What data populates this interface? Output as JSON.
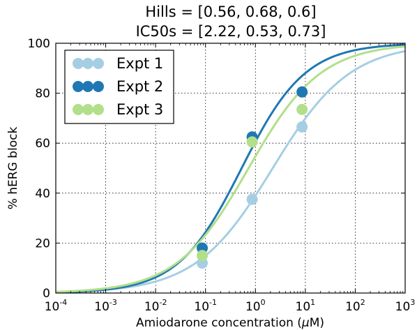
{
  "chart_data": {
    "type": "scatter",
    "title_lines": [
      "Hills = [0.56, 0.68, 0.6]",
      "IC50s = [2.22, 0.53, 0.73]"
    ],
    "xlabel_prefix": "Amiodarone concentration (",
    "xlabel_unit": "μ",
    "xlabel_suffix": "M)",
    "ylabel": "% hERG block",
    "x_scale": "log",
    "xlim": [
      0.0001,
      1000
    ],
    "ylim": [
      0,
      100
    ],
    "grid": true,
    "legend_position": "top-left",
    "x_ticks": [
      {
        "base": "10",
        "exp": "-4"
      },
      {
        "base": "10",
        "exp": "-3"
      },
      {
        "base": "10",
        "exp": "-2"
      },
      {
        "base": "10",
        "exp": "-1"
      },
      {
        "base": "10",
        "exp": "0"
      },
      {
        "base": "10",
        "exp": "1"
      },
      {
        "base": "10",
        "exp": "2"
      },
      {
        "base": "10",
        "exp": "3"
      }
    ],
    "y_ticks": [
      "0",
      "20",
      "40",
      "60",
      "80",
      "100"
    ],
    "series": [
      {
        "name": "Expt 1",
        "color": "#a6cee3",
        "hill": 0.56,
        "ic50": 2.22,
        "x": [
          0.086,
          0.86,
          8.6
        ],
        "y": [
          12,
          37.5,
          66.5
        ]
      },
      {
        "name": "Expt 2",
        "color": "#1f78b4",
        "hill": 0.68,
        "ic50": 0.53,
        "x": [
          0.086,
          0.86,
          8.6
        ],
        "y": [
          18,
          62.5,
          80.5
        ]
      },
      {
        "name": "Expt 3",
        "color": "#b2df8a",
        "hill": 0.6,
        "ic50": 0.73,
        "x": [
          0.086,
          0.86,
          8.6
        ],
        "y": [
          15,
          60.5,
          73.5
        ]
      }
    ]
  }
}
